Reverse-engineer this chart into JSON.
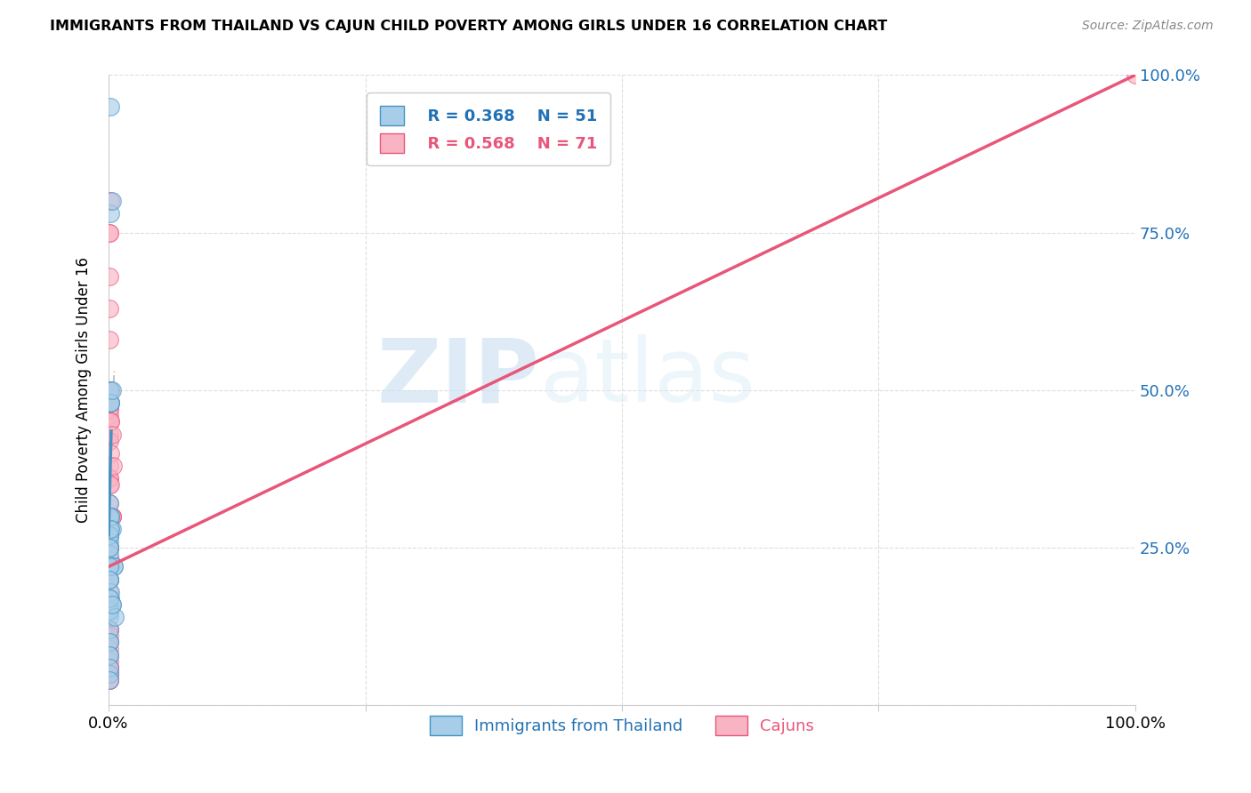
{
  "title": "IMMIGRANTS FROM THAILAND VS CAJUN CHILD POVERTY AMONG GIRLS UNDER 16 CORRELATION CHART",
  "source": "Source: ZipAtlas.com",
  "ylabel": "Child Poverty Among Girls Under 16",
  "xlim": [
    0,
    100
  ],
  "ylim": [
    0,
    100
  ],
  "legend_r1": "R = 0.368",
  "legend_n1": "N = 51",
  "legend_r2": "R = 0.568",
  "legend_n2": "N = 71",
  "color_blue": "#a8cde8",
  "color_pink": "#f9b4c4",
  "color_blue_line": "#4393c3",
  "color_pink_line": "#e8567a",
  "color_blue_dark": "#2171b5",
  "watermark_zip": "ZIP",
  "watermark_atlas": "atlas",
  "thailand_x": [
    0.1,
    0.1,
    0.2,
    0.1,
    0.2,
    0.3,
    0.2,
    0.1,
    0.15,
    0.1,
    0.12,
    0.2,
    0.2,
    0.1,
    0.1,
    0.1,
    0.1,
    0.3,
    0.2,
    0.1,
    0.1,
    0.1,
    0.1,
    0.2,
    0.1,
    0.2,
    0.3,
    0.2,
    0.12,
    0.1,
    0.1,
    0.5,
    0.5,
    0.1,
    0.1,
    0.2,
    0.1,
    0.1,
    0.3,
    0.1,
    0.1,
    0.1,
    0.1,
    0.6,
    0.2,
    0.1,
    0.1,
    0.1,
    0.1,
    0.1,
    0.3
  ],
  "thailand_y": [
    30,
    10,
    95,
    22,
    78,
    80,
    48,
    50,
    50,
    32,
    30,
    30,
    28,
    27,
    28,
    27,
    26,
    28,
    30,
    25,
    25,
    27,
    24,
    48,
    25,
    48,
    50,
    28,
    20,
    15,
    8,
    22,
    22,
    14,
    5,
    17,
    16,
    20,
    16,
    22,
    15,
    12,
    10,
    14,
    18,
    20,
    17,
    8,
    6,
    4,
    16
  ],
  "cajun_x": [
    0.1,
    0.1,
    0.1,
    0.1,
    0.1,
    0.2,
    0.1,
    0.1,
    0.1,
    0.1,
    0.2,
    0.1,
    0.1,
    0.1,
    0.2,
    0.1,
    0.1,
    0.2,
    0.2,
    0.1,
    0.1,
    0.1,
    0.1,
    0.1,
    0.2,
    0.3,
    0.1,
    0.1,
    0.1,
    0.1,
    0.1,
    0.3,
    0.2,
    0.2,
    0.1,
    0.1,
    0.3,
    0.3,
    0.1,
    0.1,
    0.1,
    0.1,
    0.2,
    0.2,
    0.2,
    0.1,
    0.4,
    0.1,
    0.1,
    0.1,
    0.1,
    0.1,
    0.1,
    0.1,
    0.1,
    0.1,
    0.1,
    0.1,
    0.1,
    0.1,
    0.1,
    0.1,
    0.1,
    0.1,
    0.1,
    0.1,
    0.1,
    0.1,
    0.1,
    0.1,
    100.0
  ],
  "cajun_y": [
    75,
    75,
    68,
    63,
    58,
    80,
    45,
    48,
    47,
    46,
    50,
    50,
    50,
    47,
    45,
    43,
    42,
    45,
    40,
    38,
    36,
    36,
    35,
    32,
    48,
    43,
    30,
    30,
    30,
    28,
    28,
    30,
    30,
    35,
    27,
    27,
    30,
    30,
    25,
    25,
    25,
    22,
    22,
    22,
    23,
    20,
    38,
    20,
    17,
    15,
    15,
    12,
    12,
    11,
    10,
    9,
    8,
    7,
    6,
    5,
    6,
    6,
    5,
    4,
    5,
    4,
    16,
    15,
    17,
    18,
    100
  ],
  "blue_trend_x1": 0.0,
  "blue_trend_y1": 27.0,
  "blue_trend_x2": 0.55,
  "blue_trend_y2": 53.0,
  "blue_solid_x2": 0.25,
  "blue_solid_y2": 43.5,
  "pink_trend_x1": 0.0,
  "pink_trend_y1": 22.0,
  "pink_trend_x2": 100.0,
  "pink_trend_y2": 100.0
}
